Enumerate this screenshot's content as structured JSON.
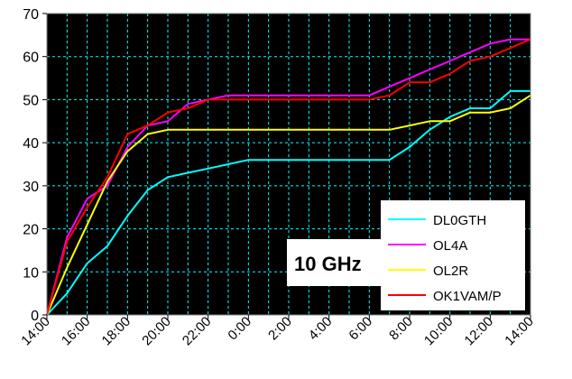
{
  "chart_data": {
    "type": "line",
    "title": "",
    "annotation": "10 GHz",
    "xlabel": "",
    "ylabel": "",
    "ylim": [
      0,
      70
    ],
    "yticks": [
      0,
      10,
      20,
      30,
      40,
      50,
      60,
      70
    ],
    "xticks": [
      "14:00",
      "16:00",
      "18:00",
      "20:00",
      "22:00",
      "0:00",
      "2:00",
      "4:00",
      "6:00",
      "8:00",
      "10:00",
      "12:00",
      "14:00"
    ],
    "x_hours": [
      0,
      1,
      2,
      3,
      4,
      5,
      6,
      7,
      8,
      9,
      10,
      11,
      12,
      13,
      14,
      15,
      16,
      17,
      18,
      19,
      20,
      21,
      22,
      23,
      24
    ],
    "grid": true,
    "legend_position": "bottom-right",
    "background_color": "#000000",
    "series": [
      {
        "name": "DL0GTH",
        "color": "#00ffff",
        "values": [
          0,
          5,
          12,
          16,
          23,
          29,
          32,
          33,
          34,
          35,
          36,
          36,
          36,
          36,
          36,
          36,
          36,
          36,
          39,
          43,
          46,
          48,
          48,
          52,
          52
        ]
      },
      {
        "name": "OL4A",
        "color": "#ff00ff",
        "values": [
          0,
          18,
          27,
          30,
          39,
          44,
          45,
          49,
          50,
          51,
          51,
          51,
          51,
          51,
          51,
          51,
          51,
          53,
          55,
          57,
          59,
          61,
          63,
          64,
          64
        ]
      },
      {
        "name": "OL2R",
        "color": "#ffff00",
        "values": [
          0,
          11,
          21,
          31,
          38,
          42,
          43,
          43,
          43,
          43,
          43,
          43,
          43,
          43,
          43,
          43,
          43,
          43,
          44,
          45,
          45,
          47,
          47,
          48,
          51
        ]
      },
      {
        "name": "OK1VAM/P",
        "color": "#ff0000",
        "values": [
          0,
          17,
          25,
          32,
          42,
          44,
          47,
          48,
          50,
          50,
          50,
          50,
          50,
          50,
          50,
          50,
          50,
          51,
          54,
          54,
          56,
          59,
          60,
          62,
          64
        ]
      }
    ]
  }
}
